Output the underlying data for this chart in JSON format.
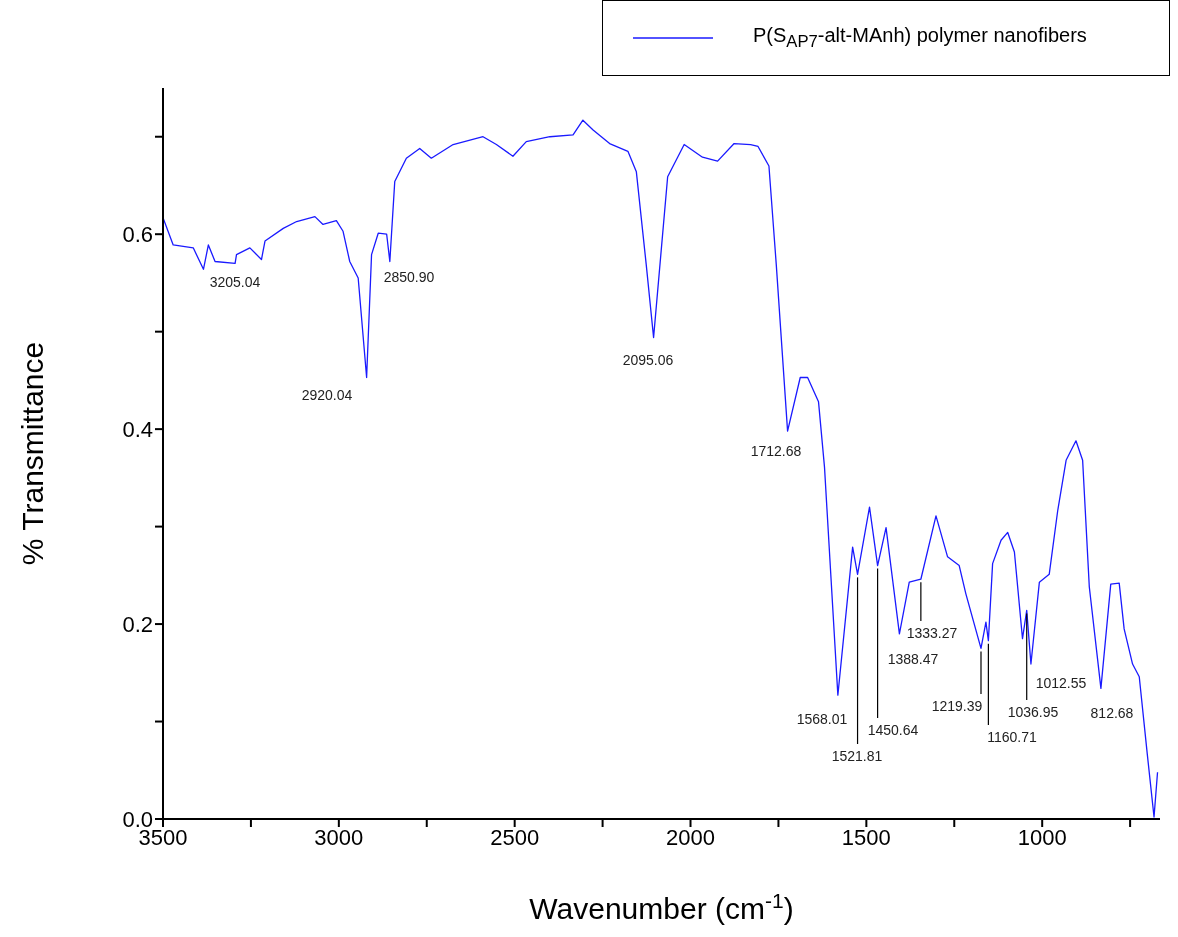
{
  "chart_data": {
    "type": "line",
    "xlabel": "Wavenumber (cm$^{-1}$)",
    "ylabel": "% Transmittance",
    "legend": "top right",
    "marker": "none",
    "grid": false,
    "xlim": [
      3500,
      665
    ],
    "ylim": [
      0,
      0.75
    ],
    "xticks": [
      3500,
      {
        "value": 3250,
        "label": null
      },
      3000,
      {
        "value": 2750,
        "label": null
      },
      2500,
      {
        "value": 2250,
        "label": null
      },
      2000,
      {
        "value": 1750,
        "label": null
      },
      1500,
      {
        "value": 1250,
        "label": null
      },
      1000,
      {
        "value": 750,
        "label": null
      }
    ],
    "yticks": [
      {
        "value": 0,
        "label": "0.0"
      },
      {
        "value": 0.1,
        "label": null
      },
      {
        "value": 0.2,
        "label": "0.2"
      },
      {
        "value": 0.3,
        "label": null
      },
      {
        "value": 0.4,
        "label": "0.4"
      },
      {
        "value": 0.5,
        "label": null
      },
      {
        "value": 0.6,
        "label": "0.6"
      },
      {
        "value": 0.7,
        "label": null
      }
    ],
    "series": [
      {
        "name": "P(S$_{AP7}$-alt-MAnh) polymer nanofibers",
        "color": "#1a1aff",
        "x": [
          3500,
          3471,
          3414,
          3385,
          3371,
          3352,
          3295,
          3291,
          3253,
          3220,
          3210,
          3158,
          3120,
          3068,
          3045,
          3007,
          2988,
          2969,
          2945,
          2921,
          2907,
          2888,
          2864,
          2855,
          2841,
          2808,
          2770,
          2737,
          2675,
          2590,
          2552,
          2505,
          2467,
          2400,
          2334,
          2306,
          2277,
          2230,
          2178,
          2154,
          2126,
          2105,
          2065,
          2018,
          1966,
          1923,
          1876,
          1829,
          1808,
          1777,
          1756,
          1724,
          1688,
          1667,
          1636,
          1619,
          1581,
          1539,
          1525,
          1491,
          1468,
          1444,
          1406,
          1378,
          1345,
          1302,
          1269,
          1236,
          1217,
          1174,
          1160,
          1153,
          1141,
          1117,
          1098,
          1079,
          1056,
          1044,
          1032,
          1008,
          980,
          956,
          932,
          904,
          885,
          866,
          833,
          805,
          781,
          767,
          743,
          724,
          701,
          682,
          672
        ],
        "values": [
          0.617,
          0.589,
          0.586,
          0.564,
          0.589,
          0.572,
          0.57,
          0.579,
          0.586,
          0.574,
          0.593,
          0.606,
          0.613,
          0.618,
          0.61,
          0.614,
          0.603,
          0.572,
          0.555,
          0.453,
          0.579,
          0.601,
          0.6,
          0.572,
          0.654,
          0.678,
          0.688,
          0.678,
          0.692,
          0.7,
          0.692,
          0.68,
          0.695,
          0.7,
          0.702,
          0.717,
          0.707,
          0.693,
          0.685,
          0.664,
          0.569,
          0.494,
          0.659,
          0.692,
          0.679,
          0.675,
          0.693,
          0.692,
          0.69,
          0.67,
          0.568,
          0.398,
          0.453,
          0.453,
          0.428,
          0.361,
          0.127,
          0.279,
          0.251,
          0.32,
          0.26,
          0.299,
          0.19,
          0.243,
          0.246,
          0.311,
          0.269,
          0.26,
          0.231,
          0.175,
          0.202,
          0.183,
          0.262,
          0.286,
          0.294,
          0.274,
          0.185,
          0.214,
          0.159,
          0.243,
          0.251,
          0.316,
          0.368,
          0.388,
          0.368,
          0.238,
          0.134,
          0.241,
          0.242,
          0.195,
          0.159,
          0.146,
          0.066,
          0.002,
          0.048
        ]
      }
    ],
    "annotations": [
      "3205.04",
      "2920.04",
      "2850.90",
      "2095.06",
      "1712.68",
      "1568.01",
      {
        "text": "1521.81",
        "x": 1525,
        "y": 0.251
      },
      {
        "text": "1450.64",
        "x": 1468,
        "y": 0.26
      },
      "1388.47",
      {
        "text": "1333.27",
        "x": 1345,
        "y": 0.246
      },
      {
        "text": "1219.39",
        "x": 1174,
        "y": 0.175
      },
      {
        "text": "1160.71",
        "x": 1153,
        "y": 0.183
      },
      {
        "text": "1036.95",
        "x": 1044,
        "y": 0.214
      },
      "1012.55",
      "812.68"
    ]
  }
}
